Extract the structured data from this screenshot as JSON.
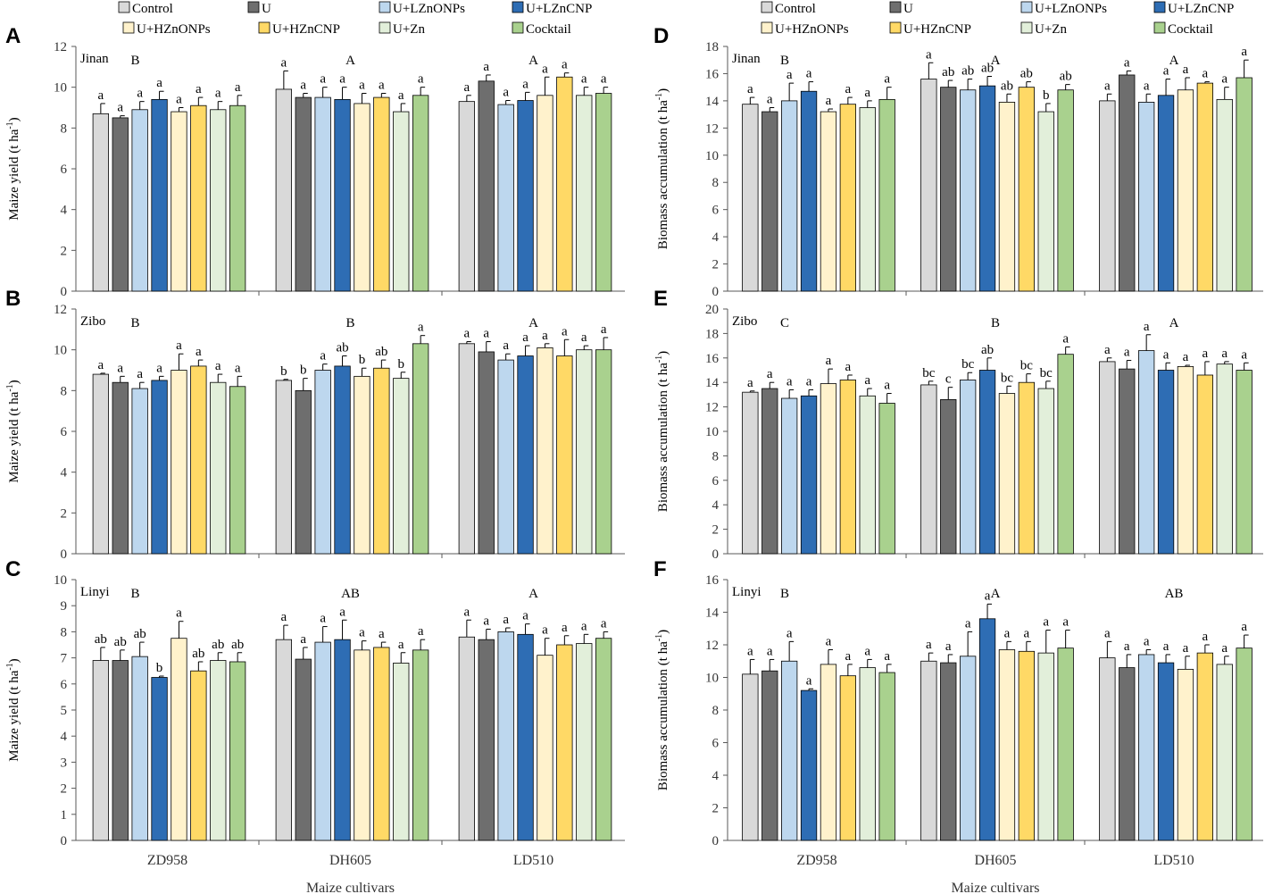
{
  "figure": {
    "x_axis_title": "Maize cultivars",
    "superscript_marker": "-1"
  },
  "legends": [
    {
      "entries": [
        "Control",
        "U",
        "U+LZnONPs",
        "U+LZnCNP",
        "U+HZnONPs",
        "U+HZnCNP",
        "U+Zn",
        "Cocktail"
      ]
    },
    {
      "entries": [
        "Control",
        "U",
        "U+LZnONPs",
        "U+LZnCNP",
        "U+HZnONPs",
        "U+HZnCNP",
        "U+Zn",
        "Cocktail"
      ]
    }
  ],
  "colors": {
    "series": [
      "#d9d9d9",
      "#6e6e6e",
      "#bdd7ee",
      "#2e6db4",
      "#fff2cc",
      "#ffd966",
      "#e2efda",
      "#a9d18e"
    ],
    "outline": "#000000",
    "axis": "#595959",
    "text": "#000000"
  },
  "chart_data": [
    {
      "panel_letter": "A",
      "site": "Jinan",
      "type": "bar",
      "ylabel": "Maize yield (t ha",
      "ylim": [
        0,
        12
      ],
      "yticks": [
        0,
        2,
        4,
        6,
        8,
        10,
        12
      ],
      "categories": [
        "ZD958",
        "DH605",
        "LD510"
      ],
      "group_letters": [
        "B",
        "A",
        "A"
      ],
      "series": [
        {
          "name": "Control",
          "values": [
            8.7,
            9.9,
            9.3
          ],
          "errors": [
            0.5,
            0.9,
            0.3
          ],
          "letters": [
            "a",
            "a",
            "a"
          ]
        },
        {
          "name": "U",
          "values": [
            8.5,
            9.5,
            10.3
          ],
          "errors": [
            0.1,
            0.2,
            0.3
          ],
          "letters": [
            "a",
            "a",
            "a"
          ]
        },
        {
          "name": "U+LZnONPs",
          "values": [
            8.9,
            9.5,
            9.15
          ],
          "errors": [
            0.4,
            0.5,
            0.2
          ],
          "letters": [
            "a",
            "a",
            "a"
          ]
        },
        {
          "name": "U+LZnCNP",
          "values": [
            9.4,
            9.4,
            9.35
          ],
          "errors": [
            0.4,
            0.6,
            0.4
          ],
          "letters": [
            "a",
            "a",
            "a"
          ]
        },
        {
          "name": "U+HZnONPs",
          "values": [
            8.8,
            9.2,
            9.6
          ],
          "errors": [
            0.2,
            0.5,
            0.9
          ],
          "letters": [
            "a",
            "a",
            "a"
          ]
        },
        {
          "name": "U+HZnCNP",
          "values": [
            9.1,
            9.5,
            10.5
          ],
          "errors": [
            0.4,
            0.2,
            0.2
          ],
          "letters": [
            "a",
            "a",
            "a"
          ]
        },
        {
          "name": "U+Zn",
          "values": [
            8.9,
            8.8,
            9.6
          ],
          "errors": [
            0.4,
            0.4,
            0.4
          ],
          "letters": [
            "a",
            "a",
            "a"
          ]
        },
        {
          "name": "Cocktail",
          "values": [
            9.1,
            9.6,
            9.7
          ],
          "errors": [
            0.5,
            0.4,
            0.3
          ],
          "letters": [
            "a",
            "a",
            "a"
          ]
        }
      ]
    },
    {
      "panel_letter": "B",
      "site": "Zibo",
      "type": "bar",
      "ylabel": "Maize yield (t ha",
      "ylim": [
        0,
        12
      ],
      "yticks": [
        0,
        2,
        4,
        6,
        8,
        10,
        12
      ],
      "categories": [
        "ZD958",
        "DH605",
        "LD510"
      ],
      "group_letters": [
        "B",
        "B",
        "A"
      ],
      "series": [
        {
          "name": "Control",
          "values": [
            8.8,
            8.5,
            10.3
          ],
          "errors": [
            0.05,
            0.05,
            0.1
          ],
          "letters": [
            "a",
            "b",
            "a"
          ]
        },
        {
          "name": "U",
          "values": [
            8.4,
            8.0,
            9.9
          ],
          "errors": [
            0.3,
            0.6,
            0.5
          ],
          "letters": [
            "a",
            "b",
            "a"
          ]
        },
        {
          "name": "U+LZnONPs",
          "values": [
            8.1,
            9.0,
            9.5
          ],
          "errors": [
            0.3,
            0.3,
            0.3
          ],
          "letters": [
            "a",
            "a",
            "a"
          ]
        },
        {
          "name": "U+LZnCNP",
          "values": [
            8.5,
            9.2,
            9.7
          ],
          "errors": [
            0.2,
            0.5,
            0.5
          ],
          "letters": [
            "a",
            "ab",
            "a"
          ]
        },
        {
          "name": "U+HZnONPs",
          "values": [
            9.0,
            8.7,
            10.1
          ],
          "errors": [
            0.8,
            0.4,
            0.2
          ],
          "letters": [
            "a",
            "b",
            "a"
          ]
        },
        {
          "name": "U+HZnCNP",
          "values": [
            9.2,
            9.1,
            9.7
          ],
          "errors": [
            0.3,
            0.4,
            0.8
          ],
          "letters": [
            "a",
            "ab",
            "a"
          ]
        },
        {
          "name": "U+Zn",
          "values": [
            8.4,
            8.6,
            10.0
          ],
          "errors": [
            0.4,
            0.3,
            0.2
          ],
          "letters": [
            "a",
            "b",
            "a"
          ]
        },
        {
          "name": "Cocktail",
          "values": [
            8.2,
            10.3,
            10.0
          ],
          "errors": [
            0.5,
            0.4,
            0.6
          ],
          "letters": [
            "a",
            "a",
            "a"
          ]
        }
      ]
    },
    {
      "panel_letter": "C",
      "site": "Linyi",
      "type": "bar",
      "ylabel": "Maize yield (t ha",
      "ylim": [
        0,
        10
      ],
      "yticks": [
        0,
        1,
        2,
        3,
        4,
        5,
        6,
        7,
        8,
        9,
        10
      ],
      "categories": [
        "ZD958",
        "DH605",
        "LD510"
      ],
      "group_letters": [
        "B",
        "AB",
        "A"
      ],
      "series": [
        {
          "name": "Control",
          "values": [
            6.9,
            7.7,
            7.8
          ],
          "errors": [
            0.5,
            0.55,
            0.65
          ],
          "letters": [
            "ab",
            "a",
            "a"
          ]
        },
        {
          "name": "U",
          "values": [
            6.9,
            6.95,
            7.7
          ],
          "errors": [
            0.4,
            0.45,
            0.4
          ],
          "letters": [
            "ab",
            "a",
            "a"
          ]
        },
        {
          "name": "U+LZnONPs",
          "values": [
            7.05,
            7.6,
            8.0
          ],
          "errors": [
            0.55,
            0.6,
            0.15
          ],
          "letters": [
            "ab",
            "a",
            "a"
          ]
        },
        {
          "name": "U+LZnCNP",
          "values": [
            6.25,
            7.7,
            7.9
          ],
          "errors": [
            0.05,
            0.75,
            0.4
          ],
          "letters": [
            "b",
            "a",
            "a"
          ]
        },
        {
          "name": "U+HZnONPs",
          "values": [
            7.75,
            7.3,
            7.1
          ],
          "errors": [
            0.65,
            0.35,
            0.65
          ],
          "letters": [
            "a",
            "a",
            "a"
          ]
        },
        {
          "name": "U+HZnCNP",
          "values": [
            6.5,
            7.4,
            7.5
          ],
          "errors": [
            0.35,
            0.2,
            0.35
          ],
          "letters": [
            "ab",
            "a",
            "a"
          ]
        },
        {
          "name": "U+Zn",
          "values": [
            6.9,
            6.8,
            7.55
          ],
          "errors": [
            0.3,
            0.4,
            0.35
          ],
          "letters": [
            "ab",
            "a",
            "a"
          ]
        },
        {
          "name": "Cocktail",
          "values": [
            6.85,
            7.3,
            7.75
          ],
          "errors": [
            0.35,
            0.4,
            0.25
          ],
          "letters": [
            "ab",
            "a",
            "a"
          ]
        }
      ]
    },
    {
      "panel_letter": "D",
      "site": "Jinan",
      "type": "bar",
      "ylabel": "Biomass accumulation (t ha",
      "ylim": [
        0,
        18
      ],
      "yticks": [
        0,
        2,
        4,
        6,
        8,
        10,
        12,
        14,
        16,
        18
      ],
      "categories": [
        "ZD958",
        "DH605",
        "LD510"
      ],
      "group_letters": [
        "B",
        "A",
        "A"
      ],
      "series": [
        {
          "name": "Control",
          "values": [
            13.75,
            15.6,
            14.0
          ],
          "errors": [
            0.5,
            1.2,
            0.5
          ],
          "letters": [
            "a",
            "a",
            "a"
          ]
        },
        {
          "name": "U",
          "values": [
            13.2,
            15.0,
            15.9
          ],
          "errors": [
            0.3,
            0.5,
            0.3
          ],
          "letters": [
            "a",
            "ab",
            "a"
          ]
        },
        {
          "name": "U+LZnONPs",
          "values": [
            14.0,
            14.8,
            13.9
          ],
          "errors": [
            1.3,
            0.8,
            0.6
          ],
          "letters": [
            "a",
            "ab",
            "a"
          ]
        },
        {
          "name": "U+LZnCNP",
          "values": [
            14.7,
            15.1,
            14.4
          ],
          "errors": [
            0.7,
            0.7,
            1.2
          ],
          "letters": [
            "a",
            "ab",
            "a"
          ]
        },
        {
          "name": "U+HZnONPs",
          "values": [
            13.2,
            13.9,
            14.8
          ],
          "errors": [
            0.2,
            0.6,
            0.9
          ],
          "letters": [
            "a",
            "ab",
            "a"
          ]
        },
        {
          "name": "U+HZnCNP",
          "values": [
            13.75,
            15.0,
            15.3
          ],
          "errors": [
            0.5,
            0.4,
            0.1
          ],
          "letters": [
            "a",
            "ab",
            "a"
          ]
        },
        {
          "name": "U+Zn",
          "values": [
            13.5,
            13.2,
            14.1
          ],
          "errors": [
            0.5,
            0.6,
            0.9
          ],
          "letters": [
            "a",
            "b",
            "a"
          ]
        },
        {
          "name": "Cocktail",
          "values": [
            14.1,
            14.8,
            15.7
          ],
          "errors": [
            0.9,
            0.4,
            1.3
          ],
          "letters": [
            "a",
            "ab",
            "a"
          ]
        }
      ]
    },
    {
      "panel_letter": "E",
      "site": "Zibo",
      "type": "bar",
      "ylabel": "Biomass accumulation (t ha",
      "ylim": [
        0,
        20
      ],
      "yticks": [
        0,
        2,
        4,
        6,
        8,
        10,
        12,
        14,
        16,
        18,
        20
      ],
      "categories": [
        "ZD958",
        "DH605",
        "LD510"
      ],
      "group_letters": [
        "C",
        "B",
        "A"
      ],
      "series": [
        {
          "name": "Control",
          "values": [
            13.2,
            13.8,
            15.7
          ],
          "errors": [
            0.1,
            0.3,
            0.3
          ],
          "letters": [
            "a",
            "bc",
            "a"
          ]
        },
        {
          "name": "U",
          "values": [
            13.5,
            12.6,
            15.1
          ],
          "errors": [
            0.5,
            1.0,
            0.7
          ],
          "letters": [
            "a",
            "c",
            "a"
          ]
        },
        {
          "name": "U+LZnONPs",
          "values": [
            12.7,
            14.2,
            16.6
          ],
          "errors": [
            0.7,
            0.6,
            1.3
          ],
          "letters": [
            "a",
            "bc",
            "a"
          ]
        },
        {
          "name": "U+LZnCNP",
          "values": [
            12.9,
            15.0,
            15.0
          ],
          "errors": [
            0.5,
            1.0,
            0.6
          ],
          "letters": [
            "a",
            "ab",
            "a"
          ]
        },
        {
          "name": "U+HZnONPs",
          "values": [
            13.9,
            13.1,
            15.3
          ],
          "errors": [
            1.2,
            0.6,
            0.1
          ],
          "letters": [
            "a",
            "bc",
            "a"
          ]
        },
        {
          "name": "U+HZnCNP",
          "values": [
            14.2,
            14.0,
            14.6
          ],
          "errors": [
            0.4,
            0.7,
            1.1
          ],
          "letters": [
            "a",
            "bc",
            "a"
          ]
        },
        {
          "name": "U+Zn",
          "values": [
            12.9,
            13.5,
            15.5
          ],
          "errors": [
            0.6,
            0.6,
            0.2
          ],
          "letters": [
            "a",
            "bc",
            "a"
          ]
        },
        {
          "name": "Cocktail",
          "values": [
            12.3,
            16.3,
            15.0
          ],
          "errors": [
            0.8,
            0.6,
            0.6
          ],
          "letters": [
            "a",
            "a",
            "a"
          ]
        }
      ]
    },
    {
      "panel_letter": "F",
      "site": "Linyi",
      "type": "bar",
      "ylabel": "Biomass accumulation (t ha",
      "ylim": [
        0,
        16
      ],
      "yticks": [
        0,
        2,
        4,
        6,
        8,
        10,
        12,
        14,
        16
      ],
      "categories": [
        "ZD958",
        "DH605",
        "LD510"
      ],
      "group_letters": [
        "B",
        "A",
        "AB"
      ],
      "series": [
        {
          "name": "Control",
          "values": [
            10.2,
            11.0,
            11.2
          ],
          "errors": [
            0.9,
            0.5,
            1.0
          ],
          "letters": [
            "a",
            "a",
            "a"
          ]
        },
        {
          "name": "U",
          "values": [
            10.4,
            10.9,
            10.6
          ],
          "errors": [
            0.7,
            0.5,
            0.8
          ],
          "letters": [
            "a",
            "a",
            "a"
          ]
        },
        {
          "name": "U+LZnONPs",
          "values": [
            11.0,
            11.3,
            11.4
          ],
          "errors": [
            1.2,
            1.5,
            0.3
          ],
          "letters": [
            "a",
            "a",
            "a"
          ]
        },
        {
          "name": "U+LZnCNP",
          "values": [
            9.2,
            13.6,
            10.9
          ],
          "errors": [
            0.1,
            0.9,
            0.5
          ],
          "letters": [
            "a",
            "a",
            "a"
          ]
        },
        {
          "name": "U+HZnONPs",
          "values": [
            10.8,
            11.7,
            10.5
          ],
          "errors": [
            0.9,
            0.5,
            0.8
          ],
          "letters": [
            "a",
            "a",
            "a"
          ]
        },
        {
          "name": "U+HZnCNP",
          "values": [
            10.1,
            11.6,
            11.5
          ],
          "errors": [
            0.7,
            0.6,
            0.5
          ],
          "letters": [
            "a",
            "a",
            "a"
          ]
        },
        {
          "name": "U+Zn",
          "values": [
            10.6,
            11.5,
            10.8
          ],
          "errors": [
            0.5,
            1.4,
            0.5
          ],
          "letters": [
            "a",
            "a",
            "a"
          ]
        },
        {
          "name": "Cocktail",
          "values": [
            10.3,
            11.8,
            11.8
          ],
          "errors": [
            0.5,
            1.1,
            0.8
          ],
          "letters": [
            "a",
            "a",
            "a"
          ]
        }
      ]
    }
  ]
}
